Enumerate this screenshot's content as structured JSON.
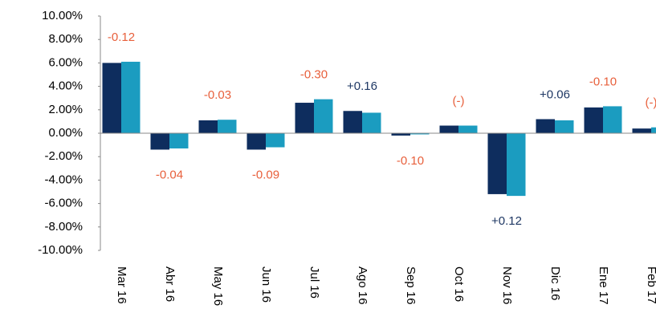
{
  "chart_data": {
    "type": "bar",
    "categories": [
      "Mar 16",
      "Abr 16",
      "May 16",
      "Jun 16",
      "Jul 16",
      "Ago 16",
      "Sep 16",
      "Oct 16",
      "Nov 16",
      "Dic 16",
      "Ene 17",
      "Feb 17"
    ],
    "series": [
      {
        "color": "#0e2d5e",
        "values": [
          6.0,
          -1.4,
          1.1,
          -1.4,
          2.6,
          1.9,
          -0.2,
          0.65,
          -5.2,
          1.2,
          2.2,
          0.4
        ]
      },
      {
        "color": "#1b9cc0",
        "values": [
          6.1,
          -1.3,
          1.15,
          -1.2,
          2.9,
          1.75,
          -0.1,
          0.65,
          -5.35,
          1.1,
          2.3,
          0.5
        ]
      }
    ],
    "annotations": [
      {
        "text": "-0.12",
        "color": "#e8603c"
      },
      {
        "text": "-0.04",
        "color": "#e8603c"
      },
      {
        "text": "-0.03",
        "color": "#e8603c"
      },
      {
        "text": "-0.09",
        "color": "#e8603c"
      },
      {
        "text": "-0.30",
        "color": "#e8603c"
      },
      {
        "text": "+0.16",
        "color": "#1f3864"
      },
      {
        "text": "-0.10",
        "color": "#e8603c"
      },
      {
        "text": "(-)",
        "color": "#e8603c"
      },
      {
        "text": "+0.12",
        "color": "#1f3864"
      },
      {
        "text": "+0.06",
        "color": "#1f3864"
      },
      {
        "text": "-0.10",
        "color": "#e8603c"
      },
      {
        "text": "(-)",
        "color": "#e8603c"
      }
    ],
    "ylim": [
      -10,
      10
    ],
    "yticks": [
      {
        "value": -10,
        "label": "-10.00%"
      },
      {
        "value": -8,
        "label": "-8.00%"
      },
      {
        "value": -6,
        "label": "-6.00%"
      },
      {
        "value": -4,
        "label": "-4.00%"
      },
      {
        "value": -2,
        "label": "-2.00%"
      },
      {
        "value": 0,
        "label": "0.00%"
      },
      {
        "value": 2,
        "label": "2.00%"
      },
      {
        "value": 4,
        "label": "4.00%"
      },
      {
        "value": 6,
        "label": "6.00%"
      },
      {
        "value": 8,
        "label": "8.00%"
      },
      {
        "value": 10,
        "label": "10.00%"
      }
    ],
    "grid": false
  }
}
